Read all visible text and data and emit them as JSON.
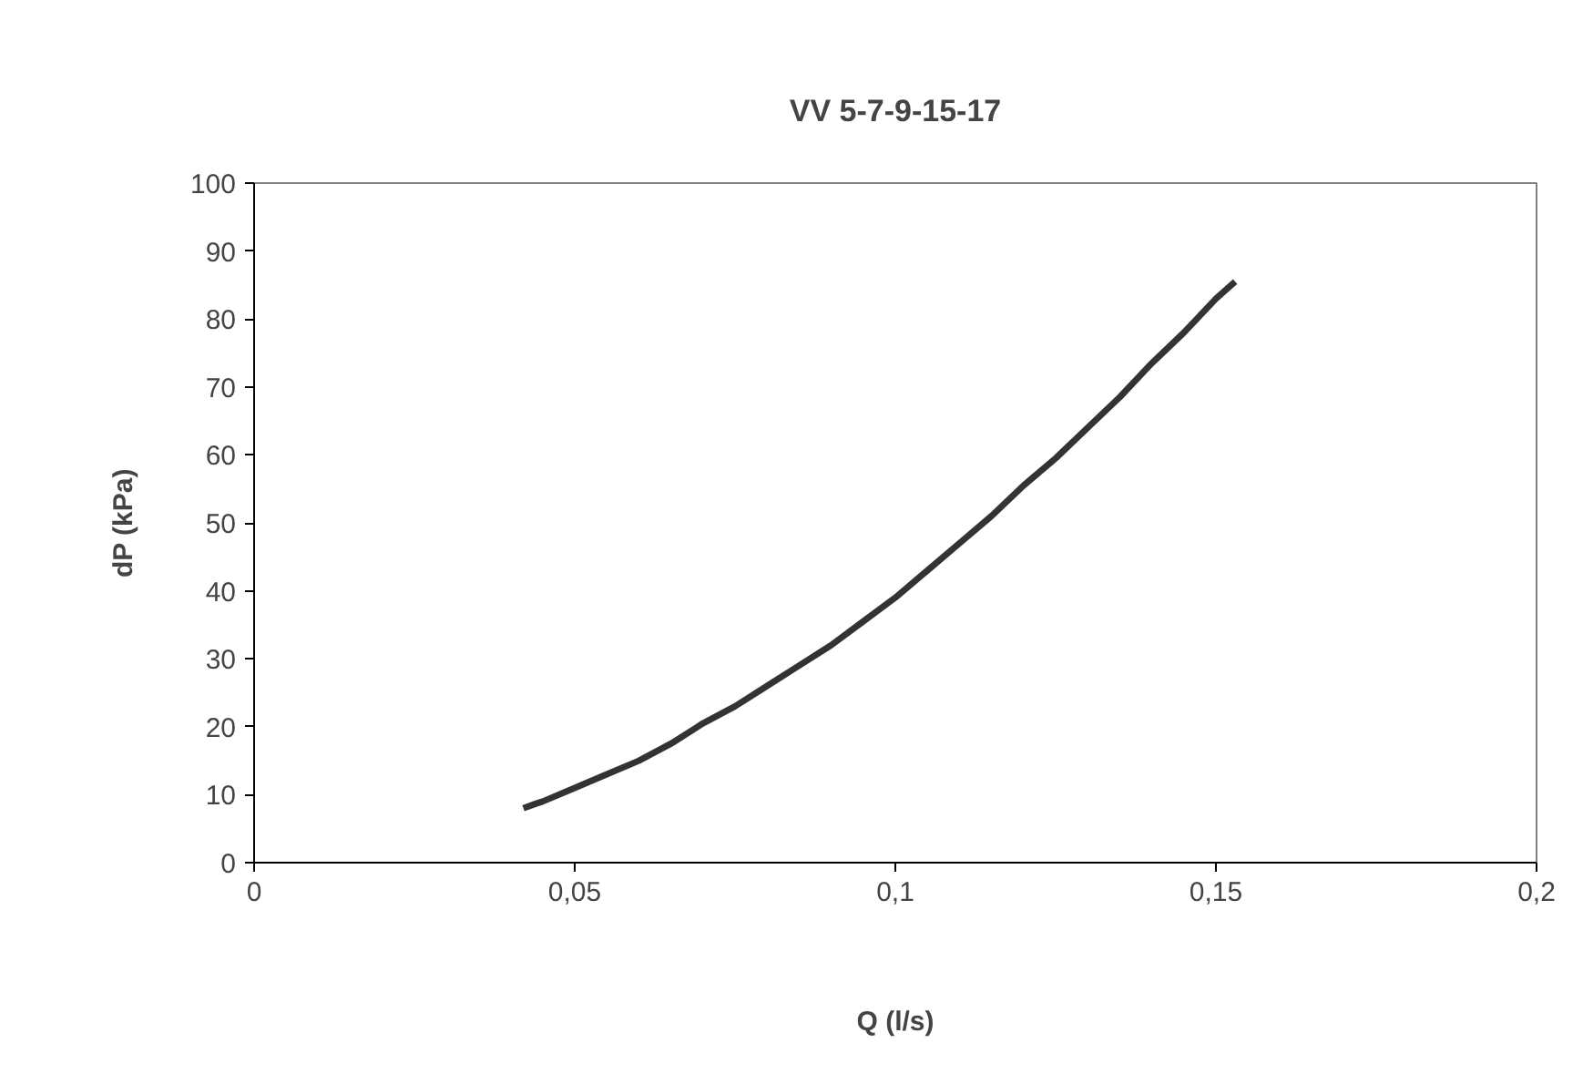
{
  "chart_data": {
    "type": "line",
    "title": "VV 5-7-9-15-17",
    "xlabel": "Q (l/s)",
    "ylabel": "dP (kPa)",
    "series": [
      {
        "color": "#333333",
        "x": [
          0.042,
          0.044,
          0.045,
          0.05,
          0.055,
          0.06,
          0.065,
          0.07,
          0.075,
          0.08,
          0.085,
          0.09,
          0.095,
          0.1,
          0.105,
          0.11,
          0.115,
          0.12,
          0.125,
          0.13,
          0.135,
          0.14,
          0.145,
          0.15,
          0.153
        ],
        "values": [
          8,
          8.7,
          9,
          11,
          13,
          15,
          17.5,
          20.5,
          23,
          26,
          29,
          32,
          35.5,
          39,
          43,
          47,
          51,
          55.5,
          59.5,
          64,
          68.5,
          73.5,
          78,
          83,
          85.5
        ]
      }
    ],
    "xlim": [
      0,
      0.2
    ],
    "ylim": [
      0,
      100
    ],
    "xticks": [
      0,
      {
        "value": 0.05,
        "label": "0,05"
      },
      {
        "value": 0.1,
        "label": "0,1"
      },
      {
        "value": 0.15,
        "label": "0,15"
      },
      {
        "value": 0.2,
        "label": "0,2"
      }
    ],
    "yticks": [
      0,
      10,
      20,
      30,
      40,
      50,
      60,
      70,
      80,
      90,
      100
    ],
    "grid": false,
    "marker": "none",
    "line_style": "solid"
  }
}
